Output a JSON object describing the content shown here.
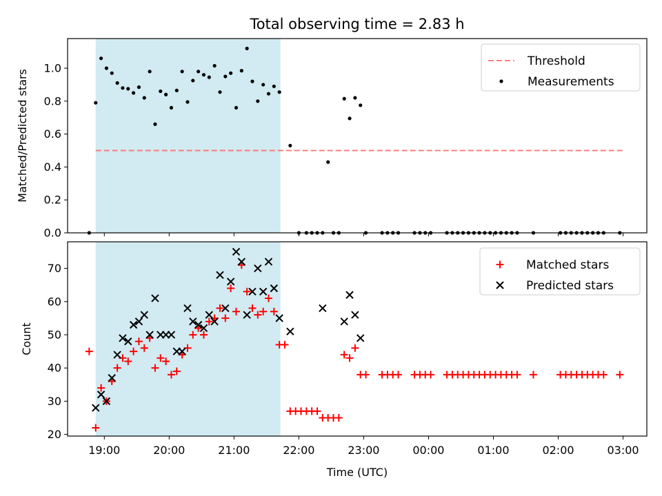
{
  "figure": {
    "title": "Total observing time = 2.83 h"
  },
  "colors": {
    "shade": "#add8e6",
    "threshold": "#ff6666",
    "measurements": "#000000",
    "matched": "#ff0000",
    "predicted": "#000000"
  },
  "chart_data": [
    {
      "type": "scatter",
      "panel": "top",
      "title": "Total observing time = 2.83 h",
      "xlabel": "",
      "ylabel": "Matched/Predicted stars",
      "ylim": [
        0,
        1.18
      ],
      "yticks": [
        0.0,
        0.2,
        0.4,
        0.6,
        0.8,
        1.0
      ],
      "yticklabels": [
        "0.0",
        "0.2",
        "0.4",
        "0.6",
        "0.8",
        "1.0"
      ],
      "xticklabels_visible": false,
      "legend": {
        "placement": "upper right"
      },
      "shaded_interval": [
        "18:52",
        "21:43"
      ],
      "series": [
        {
          "name": "Threshold",
          "style": "dashed-line",
          "x": [
            "18:52",
            "23:00",
            "03:00"
          ],
          "y": [
            0.5,
            0.5,
            0.5
          ]
        },
        {
          "name": "Measurements",
          "style": "dot",
          "x": [
            "18:46",
            "18:52",
            "18:57",
            "19:02",
            "19:07",
            "19:12",
            "19:17",
            "19:22",
            "19:27",
            "19:32",
            "19:37",
            "19:42",
            "19:47",
            "19:52",
            "19:57",
            "20:02",
            "20:07",
            "20:12",
            "20:17",
            "20:22",
            "20:27",
            "20:32",
            "20:37",
            "20:42",
            "20:47",
            "20:52",
            "20:57",
            "21:02",
            "21:07",
            "21:12",
            "21:17",
            "21:22",
            "21:27",
            "21:32",
            "21:37",
            "21:42",
            "21:52",
            "22:00",
            "22:07",
            "22:12",
            "22:17",
            "22:22",
            "22:27",
            "22:32",
            "22:37",
            "22:42",
            "22:47",
            "22:52",
            "22:57",
            "23:02",
            "23:17",
            "23:22",
            "23:27",
            "23:32",
            "23:47",
            "23:52",
            "23:57",
            "00:02",
            "00:17",
            "00:22",
            "00:27",
            "00:32",
            "00:37",
            "00:42",
            "00:47",
            "00:52",
            "00:57",
            "01:02",
            "01:07",
            "01:12",
            "01:17",
            "01:22",
            "01:37",
            "02:02",
            "02:07",
            "02:12",
            "02:17",
            "02:22",
            "02:27",
            "02:32",
            "02:37",
            "02:42",
            "02:57"
          ],
          "y": [
            0.0,
            0.79,
            1.06,
            1.0,
            0.97,
            0.91,
            0.88,
            0.875,
            0.85,
            0.885,
            0.82,
            0.98,
            0.66,
            0.86,
            0.84,
            0.76,
            0.865,
            0.98,
            0.795,
            0.925,
            0.98,
            0.96,
            0.945,
            1.015,
            0.855,
            0.95,
            0.97,
            0.76,
            0.985,
            1.12,
            0.92,
            0.8,
            0.9,
            0.845,
            0.89,
            0.855,
            0.53,
            0.0,
            0.0,
            0.0,
            0.0,
            0.0,
            0.43,
            0.0,
            0.0,
            0.815,
            0.695,
            0.82,
            0.775,
            0.0,
            0.0,
            0.0,
            0.0,
            0.0,
            0.0,
            0.0,
            0.0,
            0.0,
            0.0,
            0.0,
            0.0,
            0.0,
            0.0,
            0.0,
            0.0,
            0.0,
            0.0,
            0.0,
            0.0,
            0.0,
            0.0,
            0.0,
            0.0,
            0.0,
            0.0,
            0.0,
            0.0,
            0.0,
            0.0,
            0.0,
            0.0,
            0.0,
            0.0
          ]
        }
      ]
    },
    {
      "type": "scatter",
      "panel": "bottom",
      "title": "",
      "xlabel": "Time (UTC)",
      "ylabel": "Count",
      "xlim": [
        "18:26",
        "03:22"
      ],
      "xticklabels": [
        "19:00",
        "20:00",
        "21:00",
        "22:00",
        "23:00",
        "00:00",
        "01:00",
        "02:00",
        "03:00"
      ],
      "ylim": [
        19.5,
        78
      ],
      "yticks": [
        20,
        30,
        40,
        50,
        60,
        70
      ],
      "yticklabels": [
        "20",
        "30",
        "40",
        "50",
        "60",
        "70"
      ],
      "legend": {
        "placement": "upper right"
      },
      "shaded_interval": [
        "18:52",
        "21:43"
      ],
      "series": [
        {
          "name": "Matched stars",
          "style": "plus",
          "x": [
            "18:46",
            "18:52",
            "18:57",
            "19:02",
            "19:07",
            "19:12",
            "19:17",
            "19:22",
            "19:27",
            "19:32",
            "19:37",
            "19:42",
            "19:47",
            "19:52",
            "19:57",
            "20:02",
            "20:07",
            "20:12",
            "20:17",
            "20:22",
            "20:27",
            "20:32",
            "20:37",
            "20:42",
            "20:47",
            "20:52",
            "20:57",
            "21:02",
            "21:07",
            "21:12",
            "21:17",
            "21:22",
            "21:27",
            "21:32",
            "21:37",
            "21:42",
            "21:47",
            "21:52",
            "21:57",
            "22:02",
            "22:07",
            "22:12",
            "22:17",
            "22:22",
            "22:27",
            "22:32",
            "22:37",
            "22:42",
            "22:47",
            "22:52",
            "22:57",
            "23:02",
            "23:17",
            "23:22",
            "23:27",
            "23:32",
            "23:47",
            "23:52",
            "23:57",
            "00:02",
            "00:17",
            "00:22",
            "00:27",
            "00:32",
            "00:37",
            "00:42",
            "00:47",
            "00:52",
            "00:57",
            "01:02",
            "01:07",
            "01:12",
            "01:17",
            "01:22",
            "01:37",
            "02:02",
            "02:07",
            "02:12",
            "02:17",
            "02:22",
            "02:27",
            "02:32",
            "02:37",
            "02:42",
            "02:57"
          ],
          "y": [
            45,
            22,
            34,
            30,
            36,
            40,
            43,
            42,
            45,
            48,
            46,
            49,
            40,
            43,
            42,
            38,
            39,
            44,
            46,
            50,
            52,
            50,
            54,
            55,
            58,
            55,
            64,
            57,
            71,
            63,
            58,
            56,
            57,
            61,
            57,
            47,
            47,
            27,
            27,
            27,
            27,
            27,
            27,
            25,
            25,
            25,
            25,
            44,
            43,
            46,
            38,
            38,
            38,
            38,
            38,
            38,
            38,
            38,
            38,
            38,
            38,
            38,
            38,
            38,
            38,
            38,
            38,
            38,
            38,
            38,
            38,
            38,
            38,
            38,
            38,
            38,
            38,
            38,
            38,
            38,
            38,
            38,
            38,
            38,
            38
          ]
        },
        {
          "name": "Predicted stars",
          "style": "x",
          "x": [
            "18:52",
            "18:57",
            "19:02",
            "19:07",
            "19:12",
            "19:17",
            "19:22",
            "19:27",
            "19:32",
            "19:37",
            "19:42",
            "19:47",
            "19:52",
            "19:57",
            "20:02",
            "20:07",
            "20:12",
            "20:17",
            "20:22",
            "20:27",
            "20:32",
            "20:37",
            "20:42",
            "20:47",
            "20:52",
            "20:57",
            "21:02",
            "21:07",
            "21:12",
            "21:17",
            "21:22",
            "21:27",
            "21:32",
            "21:37",
            "21:42",
            "21:52",
            "22:22",
            "22:42",
            "22:47",
            "22:52",
            "22:57"
          ],
          "y": [
            28,
            32,
            30,
            37,
            44,
            49,
            48,
            53,
            54,
            56,
            50,
            61,
            50,
            50,
            50,
            45,
            45,
            58,
            54,
            53,
            52,
            56,
            54,
            68,
            58,
            66,
            75,
            72,
            56,
            63,
            70,
            63,
            72,
            64,
            55,
            51,
            58,
            54,
            62,
            56,
            49
          ]
        }
      ]
    }
  ]
}
